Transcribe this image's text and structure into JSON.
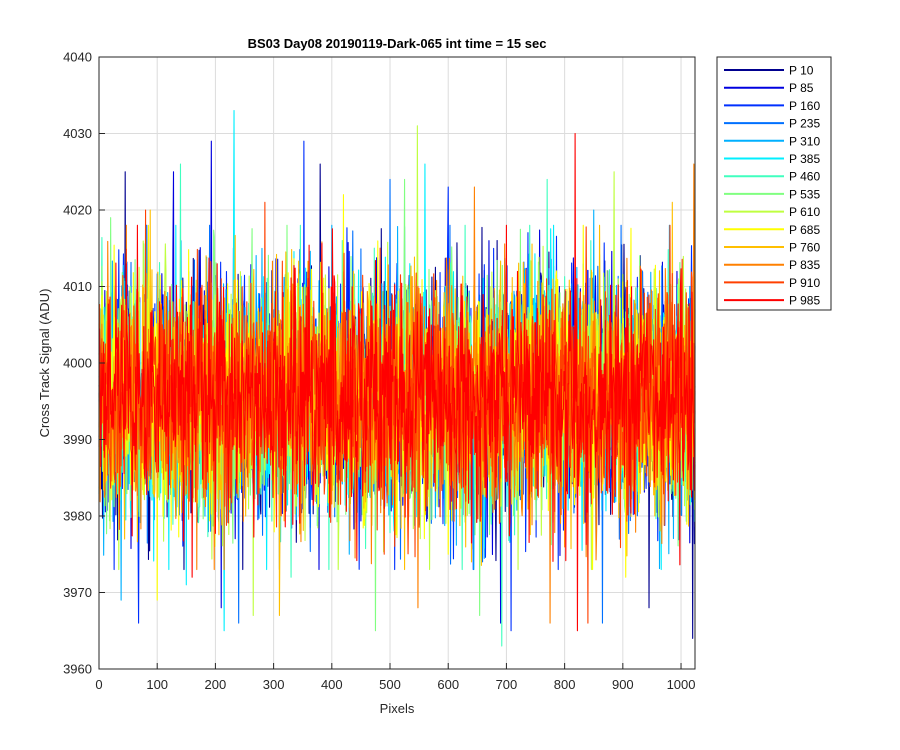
{
  "chart_data": {
    "type": "line",
    "title": "BS03 Day08 20190119-Dark-065 int time = 15 sec",
    "xlabel": "Pixels",
    "ylabel": "Cross Track Signal (ADU)",
    "xlim": [
      0,
      1024
    ],
    "ylim": [
      3960,
      4040
    ],
    "xticks": [
      0,
      100,
      200,
      300,
      400,
      500,
      600,
      700,
      800,
      900,
      1000
    ],
    "yticks": [
      3960,
      3970,
      3980,
      3990,
      4000,
      4010,
      4020,
      4030,
      4040
    ],
    "grid": true,
    "legend_position": "outside-top-right",
    "series": [
      {
        "name": "P 10",
        "color": "#00008f",
        "mean": 3995.5,
        "std": 9.5,
        "points": [
          [
            1020,
            3964
          ],
          [
            380,
            4026
          ],
          [
            45,
            4025
          ],
          [
            945,
            3968
          ]
        ]
      },
      {
        "name": "P 85",
        "color": "#0000df",
        "mean": 3995.5,
        "std": 9.5,
        "points": [
          [
            193,
            4029
          ],
          [
            128,
            4025
          ],
          [
            210,
            3968
          ],
          [
            690,
            3966
          ]
        ]
      },
      {
        "name": "P 160",
        "color": "#0030ff",
        "mean": 3995.5,
        "std": 9.5,
        "points": [
          [
            352,
            4029
          ],
          [
            708,
            3965
          ],
          [
            68,
            3966
          ],
          [
            600,
            4023
          ]
        ]
      },
      {
        "name": "P 235",
        "color": "#0070ff",
        "mean": 3995.5,
        "std": 9.5,
        "points": [
          [
            240,
            3966
          ],
          [
            865,
            3966
          ],
          [
            500,
            4024
          ],
          [
            310,
            3973
          ]
        ]
      },
      {
        "name": "P 310",
        "color": "#00b0ff",
        "mean": 3995.5,
        "std": 9.5,
        "points": [
          [
            38,
            3969
          ],
          [
            850,
            4020
          ],
          [
            430,
            3975
          ],
          [
            980,
            4018
          ]
        ]
      },
      {
        "name": "P 385",
        "color": "#00efff",
        "mean": 3995.5,
        "std": 9.5,
        "points": [
          [
            232,
            4033
          ],
          [
            215,
            3965
          ],
          [
            560,
            4026
          ],
          [
            150,
            3971
          ]
        ]
      },
      {
        "name": "P 460",
        "color": "#40ffbf",
        "mean": 3995.5,
        "std": 9.5,
        "points": [
          [
            692,
            3963
          ],
          [
            140,
            4026
          ],
          [
            770,
            4024
          ],
          [
            330,
            3972
          ]
        ]
      },
      {
        "name": "P 535",
        "color": "#80ff80",
        "mean": 3995.5,
        "std": 9.5,
        "points": [
          [
            475,
            3965
          ],
          [
            525,
            4024
          ],
          [
            654,
            3967
          ],
          [
            20,
            4019
          ]
        ]
      },
      {
        "name": "P 610",
        "color": "#bfff40",
        "mean": 3995.5,
        "std": 9.5,
        "points": [
          [
            547,
            4031
          ],
          [
            265,
            3967
          ],
          [
            885,
            4025
          ],
          [
            720,
            3973
          ]
        ]
      },
      {
        "name": "P 685",
        "color": "#ffff00",
        "mean": 3995.5,
        "std": 9.5,
        "points": [
          [
            100,
            3969
          ],
          [
            420,
            4022
          ],
          [
            905,
            3972
          ],
          [
            600,
            3975
          ]
        ]
      },
      {
        "name": "P 760",
        "color": "#ffbf00",
        "mean": 3995.5,
        "std": 9.5,
        "points": [
          [
            310,
            3967
          ],
          [
            985,
            4021
          ],
          [
            88,
            4020
          ],
          [
            640,
            3974
          ]
        ]
      },
      {
        "name": "P 835",
        "color": "#ff8000",
        "mean": 3995.5,
        "std": 9.5,
        "points": [
          [
            645,
            4023
          ],
          [
            548,
            3968
          ],
          [
            1022,
            4026
          ],
          [
            775,
            3966
          ]
        ]
      },
      {
        "name": "P 910",
        "color": "#ff4000",
        "mean": 3995.5,
        "std": 9.5,
        "points": [
          [
            840,
            3966
          ],
          [
            285,
            4021
          ],
          [
            80,
            4020
          ],
          [
            490,
            3975
          ]
        ]
      },
      {
        "name": "P 985",
        "color": "#ff0000",
        "mean": 3995.5,
        "std": 9.5,
        "points": [
          [
            818,
            4030
          ],
          [
            822,
            3965
          ],
          [
            160,
            3972
          ],
          [
            700,
            4018
          ]
        ]
      }
    ]
  }
}
